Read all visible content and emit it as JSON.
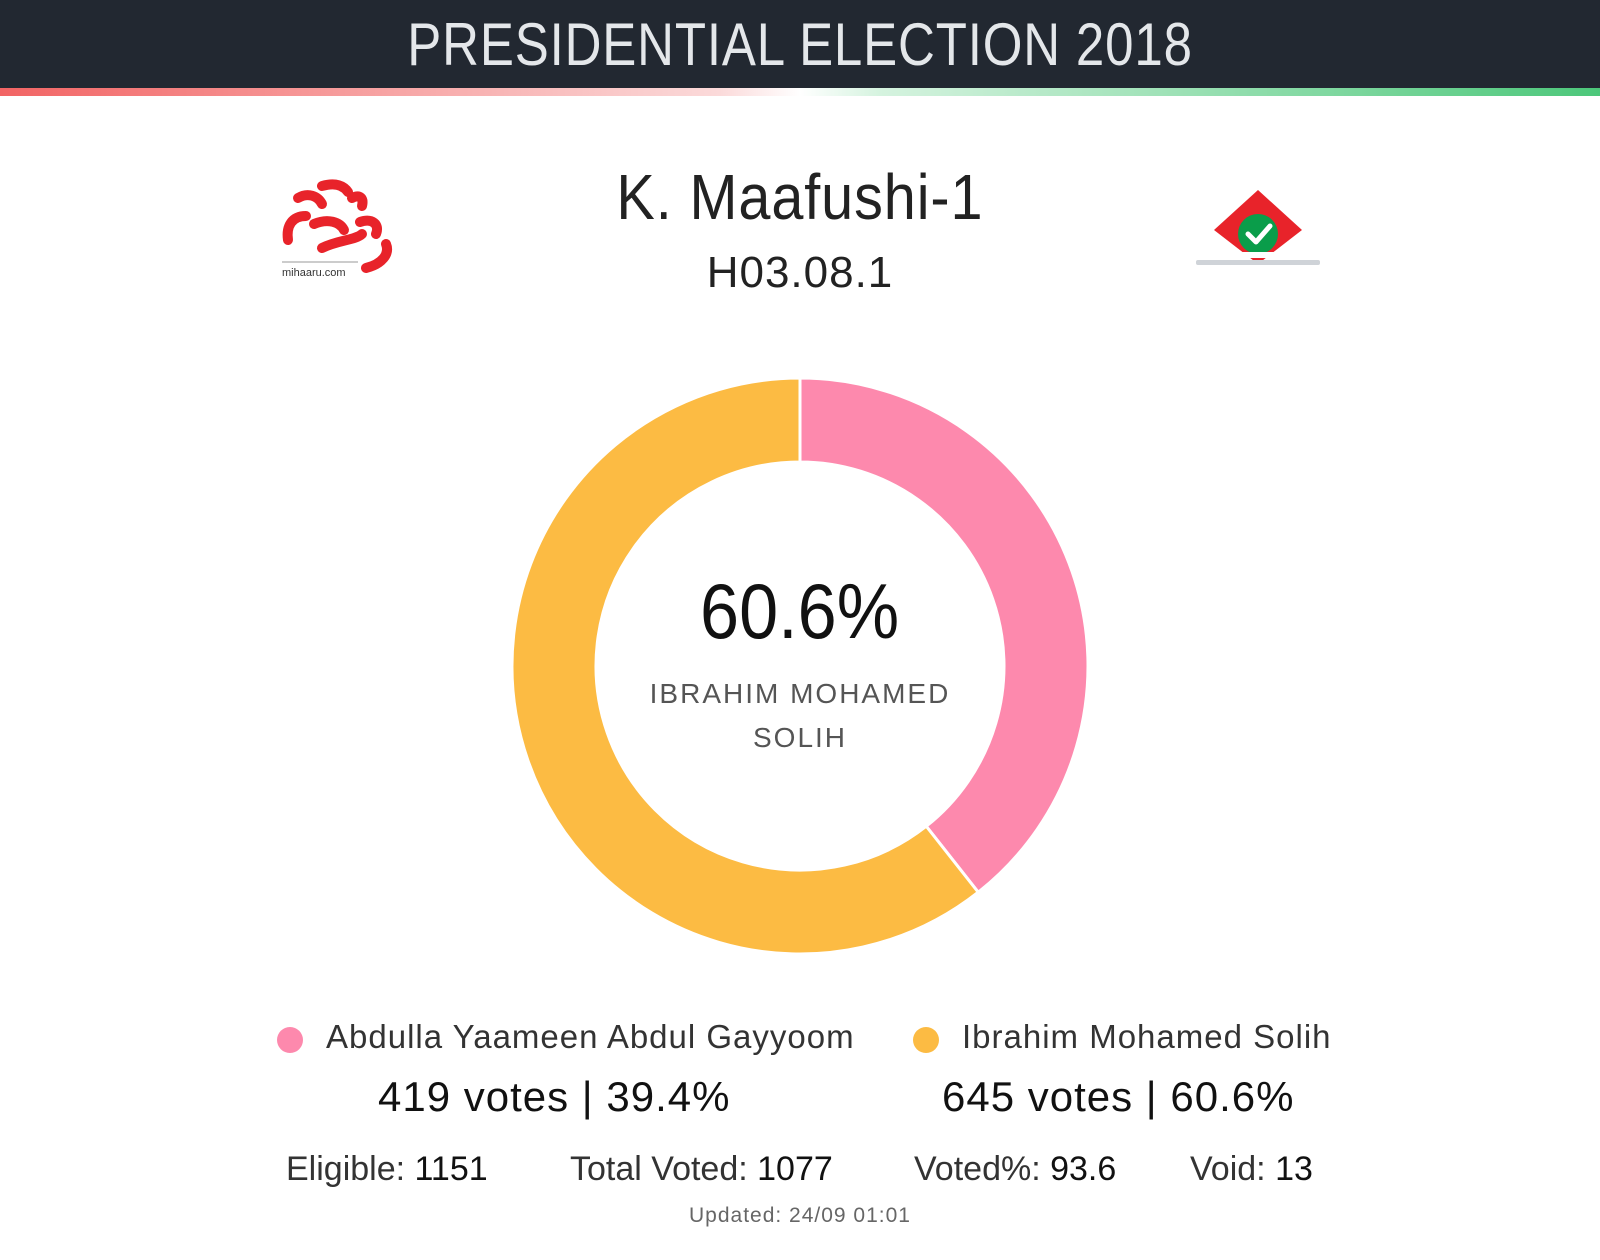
{
  "header": {
    "title": "PRESIDENTIAL ELECTION 2018"
  },
  "logos": {
    "left_caption": "mihaaru.com"
  },
  "constituency": {
    "name": "K. Maafushi-1",
    "code": "H03.08.1"
  },
  "colors": {
    "header_bg": "#222831",
    "accent_red": "#f26464",
    "accent_green": "#4cc77a",
    "pink": "#fd89ad",
    "yellow": "#fcbb43"
  },
  "chart_data": {
    "type": "pie",
    "variant": "donut",
    "categories": [
      "Abdulla Yaameen Abdul Gayyoom",
      "Ibrahim Mohamed Solih"
    ],
    "values": [
      419,
      645
    ],
    "percent": [
      39.4,
      60.6
    ],
    "colors": [
      "#fd89ad",
      "#fcbb43"
    ],
    "start": "top",
    "direction": "clockwise",
    "center_value": "60.6%",
    "center_label": "IBRAHIM MOHAMED SOLIH"
  },
  "legend": [
    {
      "name": "Abdulla Yaameen Abdul Gayyoom",
      "votes_text": "419 votes | 39.4%"
    },
    {
      "name": "Ibrahim Mohamed Solih",
      "votes_text": "645 votes | 60.6%"
    }
  ],
  "stats": {
    "eligible_label": "Eligible:",
    "eligible_value": "1151",
    "total_voted_label": "Total Voted:",
    "total_voted_value": "1077",
    "voted_pct_label": "Voted%:",
    "voted_pct_value": "93.6",
    "void_label": "Void:",
    "void_value": "13"
  },
  "updated": "Updated: 24/09 01:01"
}
